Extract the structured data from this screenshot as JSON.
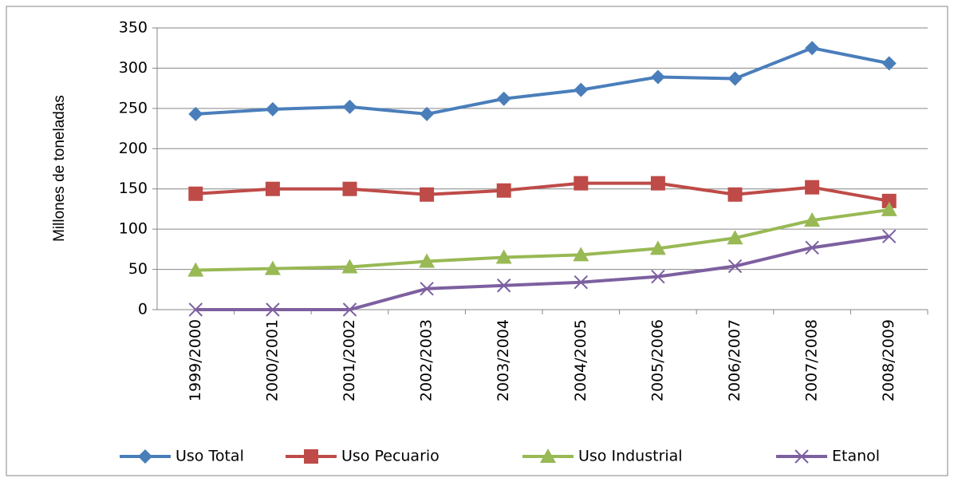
{
  "chart_data": {
    "type": "line",
    "y_label": "Millones de toneladas",
    "categories": [
      "1999/2000",
      "2000/2001",
      "2001/2002",
      "2002/2003",
      "2003/2004",
      "2004/2005",
      "2005/2006",
      "2006/2007",
      "2007/2008",
      "2008/2009"
    ],
    "series": [
      {
        "name": "Uso Total",
        "color": "#4a7ebb",
        "marker": "diamond",
        "values": [
          243,
          249,
          252,
          243,
          262,
          273,
          289,
          287,
          325,
          306
        ]
      },
      {
        "name": "Uso Pecuario",
        "color": "#be4b48",
        "marker": "square",
        "values": [
          144,
          150,
          150,
          143,
          148,
          157,
          157,
          143,
          152,
          135
        ]
      },
      {
        "name": "Uso Industrial",
        "color": "#98b954",
        "marker": "triangle",
        "values": [
          49,
          51,
          53,
          60,
          65,
          68,
          76,
          89,
          111,
          124
        ]
      },
      {
        "name": "Etanol",
        "color": "#7d60a0",
        "marker": "x",
        "values": [
          0,
          0,
          0,
          26,
          30,
          34,
          41,
          54,
          77,
          91
        ]
      }
    ],
    "ylim": [
      0,
      350
    ],
    "yticks": [
      0,
      50,
      100,
      150,
      200,
      250,
      300,
      350
    ],
    "grid": true,
    "legend": "bottom"
  }
}
